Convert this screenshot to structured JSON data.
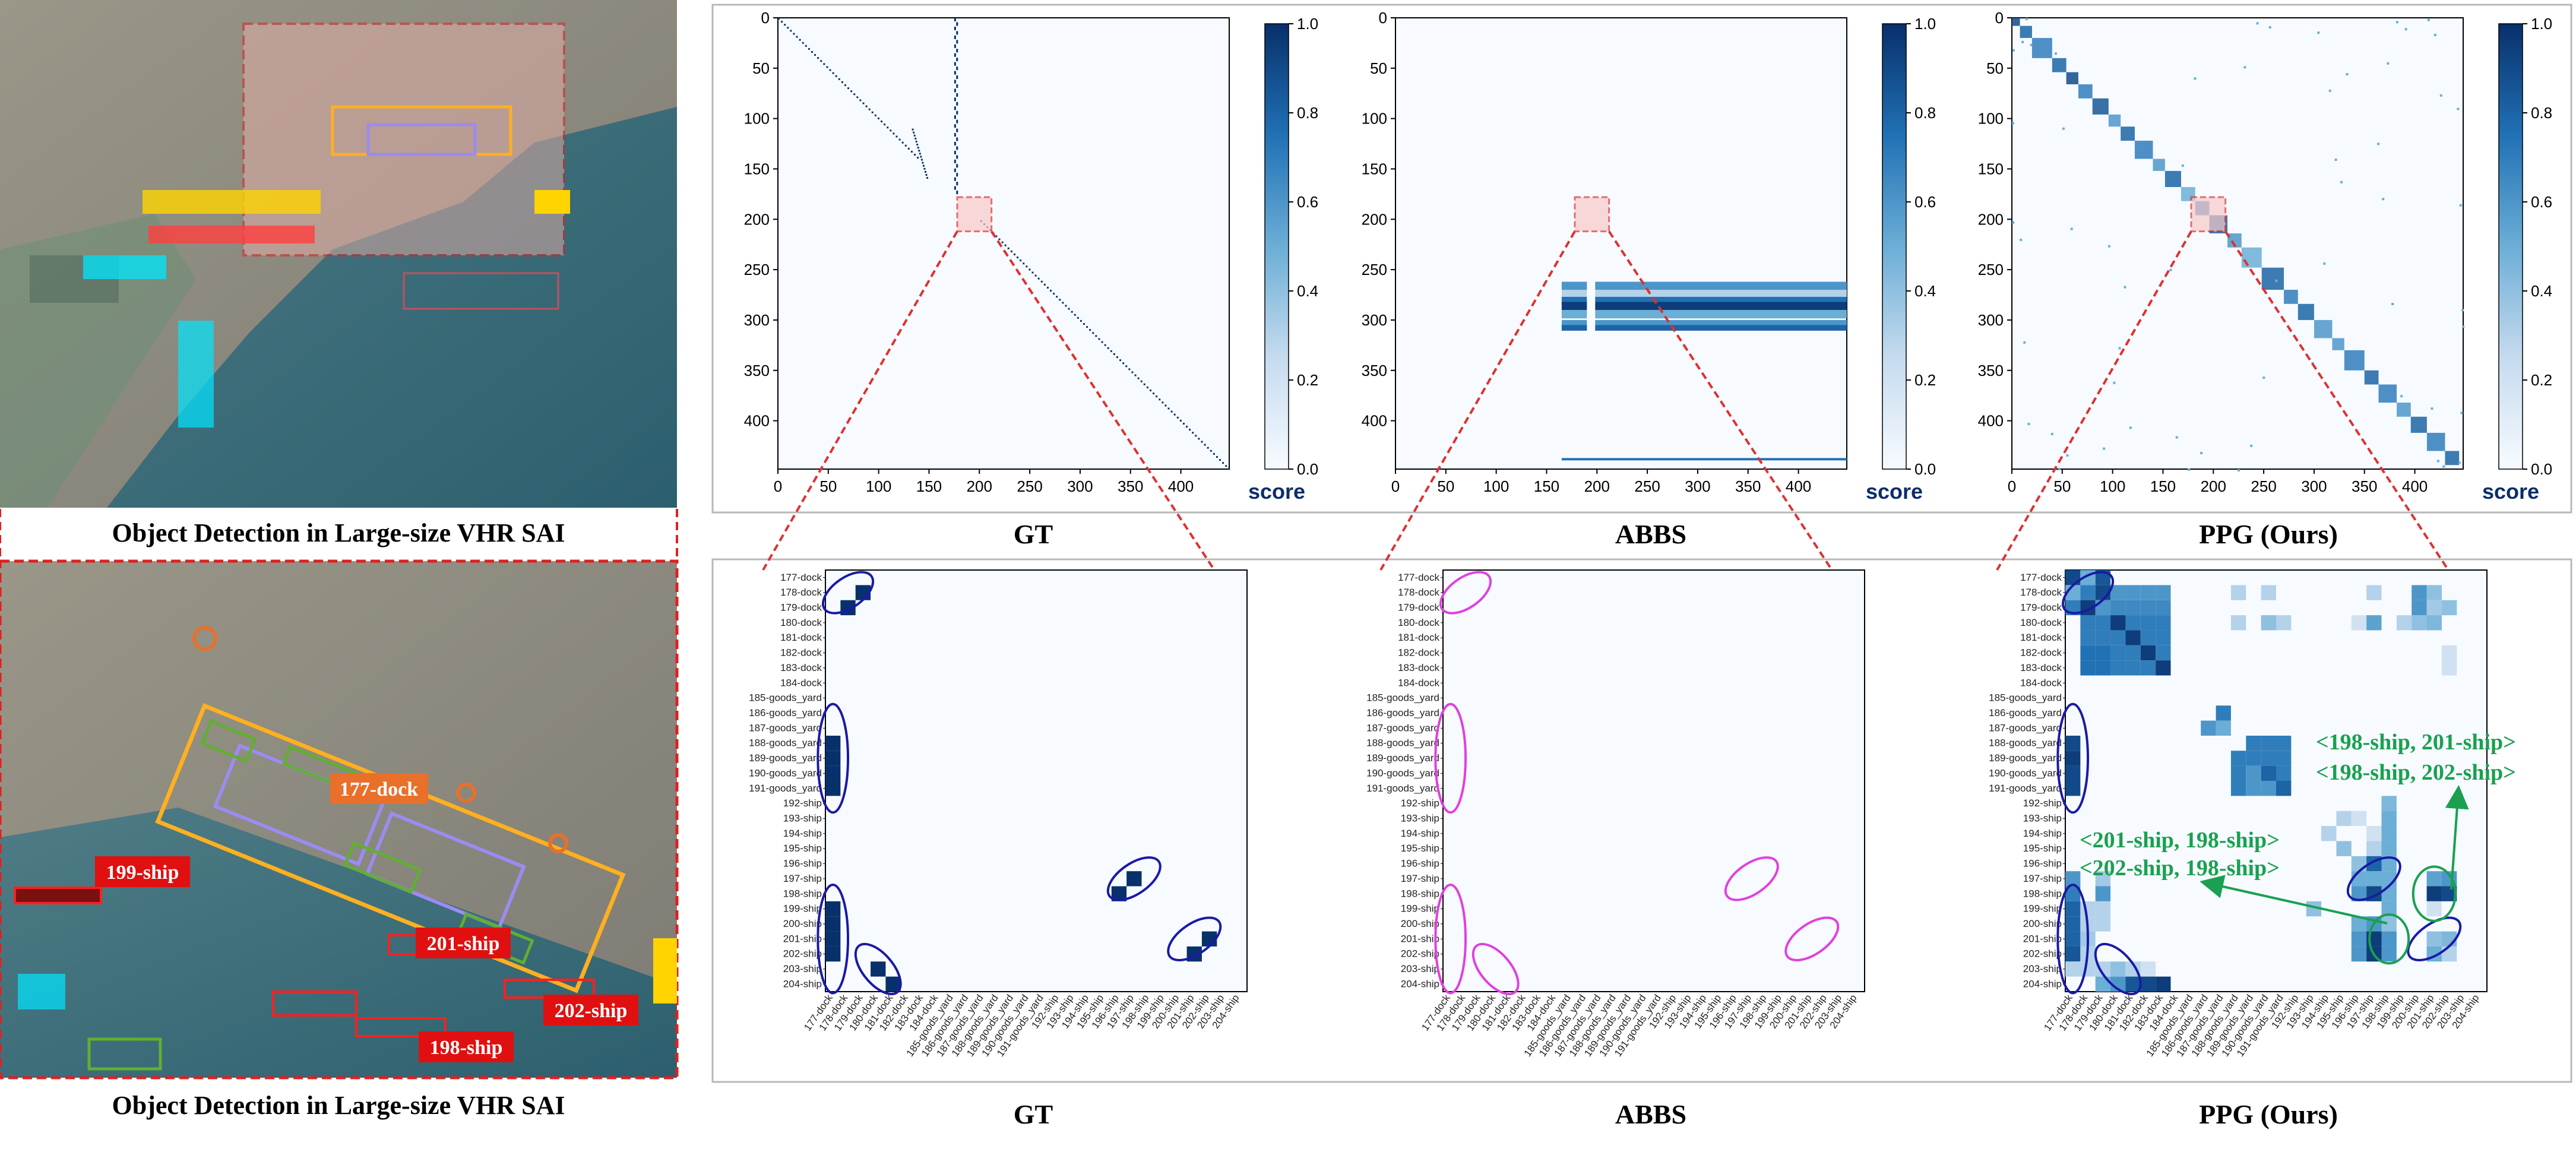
{
  "left": {
    "top_caption": "Object Detection in Large-size VHR SAI",
    "bottom_caption": "Object Detection in Large-size VHR SAI",
    "labels": [
      "177-dock",
      "199-ship",
      "201-ship",
      "202-ship",
      "198-ship"
    ]
  },
  "axis_ticks": [
    "0",
    "50",
    "100",
    "150",
    "200",
    "250",
    "300",
    "350",
    "400"
  ],
  "colorbar": {
    "ticks": [
      "0.0",
      "0.2",
      "0.4",
      "0.6",
      "0.8",
      "1.0"
    ],
    "label": "score"
  },
  "panels": [
    {
      "title": "GT"
    },
    {
      "title": "ABBS"
    },
    {
      "title": "PPG (Ours)"
    }
  ],
  "annotations": {
    "a1": "<198-ship, 201-ship>",
    "a2": "<198-ship, 202-ship>",
    "a3": "<201-ship, 198-ship>",
    "a4": "<202-ship, 198-ship>"
  },
  "colors": {
    "cmap_low": "#f7fbff",
    "cmap_high": "#08306b",
    "zoom": "#e03030",
    "gt_ellipse": "#1a1aa6",
    "abbs_ellipse": "#e040e0",
    "arrow": "#1aa050"
  },
  "chart_data": [
    {
      "type": "heatmap",
      "title": "GT",
      "xlim": [
        0,
        448
      ],
      "ylim": [
        0,
        448
      ],
      "colorbar": {
        "label": "score",
        "range": [
          0.0,
          1.0
        ]
      },
      "description_points": [
        [
          10,
          10
        ],
        [
          60,
          60
        ],
        [
          120,
          120
        ],
        [
          200,
          200
        ],
        [
          300,
          300
        ],
        [
          400,
          400
        ],
        [
          440,
          440
        ]
      ]
    },
    {
      "type": "heatmap",
      "title": "ABBS",
      "xlim": [
        0,
        448
      ],
      "ylim": [
        0,
        448
      ],
      "colorbar": {
        "label": "score",
        "range": [
          0.0,
          1.0
        ]
      }
    },
    {
      "type": "heatmap",
      "title": "PPG (Ours)",
      "xlim": [
        0,
        448
      ],
      "ylim": [
        0,
        448
      ],
      "colorbar": {
        "label": "score",
        "range": [
          0.0,
          1.0
        ]
      }
    },
    {
      "type": "heatmap",
      "title": "GT",
      "labels": [
        "177-dock",
        "178-dock",
        "179-dock",
        "180-dock",
        "181-dock",
        "182-dock",
        "183-dock",
        "184-dock",
        "185-goods_yard",
        "186-goods_yard",
        "187-goods_yard",
        "188-goods_yard",
        "189-goods_yard",
        "190-goods_yard",
        "191-goods_yard",
        "192-ship",
        "193-ship",
        "194-ship",
        "195-ship",
        "196-ship",
        "197-ship",
        "198-ship",
        "199-ship",
        "200-ship",
        "201-ship",
        "202-ship",
        "203-ship",
        "204-ship"
      ],
      "cells": [
        [
          1,
          2,
          1
        ],
        [
          2,
          1,
          1
        ],
        [
          11,
          0,
          1
        ],
        [
          12,
          0,
          1
        ],
        [
          13,
          0,
          1
        ],
        [
          14,
          0,
          1
        ],
        [
          22,
          0,
          1
        ],
        [
          23,
          0,
          1
        ],
        [
          24,
          0,
          1
        ],
        [
          25,
          0,
          1
        ],
        [
          26,
          3,
          1
        ],
        [
          27,
          4,
          1
        ],
        [
          21,
          19,
          1
        ],
        [
          20,
          20,
          1
        ],
        [
          24,
          25,
          1
        ],
        [
          25,
          24,
          1
        ]
      ]
    },
    {
      "type": "heatmap",
      "title": "ABBS",
      "labels": [
        "177-dock",
        "178-dock",
        "179-dock",
        "180-dock",
        "181-dock",
        "182-dock",
        "183-dock",
        "184-dock",
        "185-goods_yard",
        "186-goods_yard",
        "187-goods_yard",
        "188-goods_yard",
        "189-goods_yard",
        "190-goods_yard",
        "191-goods_yard",
        "192-ship",
        "193-ship",
        "194-ship",
        "195-ship",
        "196-ship",
        "197-ship",
        "198-ship",
        "199-ship",
        "200-ship",
        "201-ship",
        "202-ship",
        "203-ship",
        "204-ship"
      ],
      "cells": []
    },
    {
      "type": "heatmap",
      "title": "PPG (Ours)",
      "labels": [
        "177-dock",
        "178-dock",
        "179-dock",
        "180-dock",
        "181-dock",
        "182-dock",
        "183-dock",
        "184-dock",
        "185-goods_yard",
        "186-goods_yard",
        "187-goods_yard",
        "188-goods_yard",
        "189-goods_yard",
        "190-goods_yard",
        "191-goods_yard",
        "192-ship",
        "193-ship",
        "194-ship",
        "195-ship",
        "196-ship",
        "197-ship",
        "198-ship",
        "199-ship",
        "200-ship",
        "201-ship",
        "202-ship",
        "203-ship",
        "204-ship"
      ],
      "cells": [
        [
          0,
          0,
          0.9
        ],
        [
          0,
          1,
          0.5
        ],
        [
          0,
          2,
          0.85
        ],
        [
          1,
          0,
          0.5
        ],
        [
          1,
          1,
          0.7
        ],
        [
          1,
          2,
          0.9
        ],
        [
          1,
          3,
          0.6
        ],
        [
          1,
          4,
          0.6
        ],
        [
          1,
          5,
          0.6
        ],
        [
          1,
          6,
          0.6
        ],
        [
          1,
          11,
          0.3
        ],
        [
          1,
          13,
          0.3
        ],
        [
          1,
          20,
          0.3
        ],
        [
          1,
          23,
          0.6
        ],
        [
          1,
          24,
          0.4
        ],
        [
          2,
          0,
          0.7
        ],
        [
          2,
          1,
          0.95
        ],
        [
          2,
          2,
          0.6
        ],
        [
          2,
          3,
          0.65
        ],
        [
          2,
          4,
          0.65
        ],
        [
          2,
          5,
          0.65
        ],
        [
          2,
          6,
          0.65
        ],
        [
          2,
          23,
          0.6
        ],
        [
          2,
          24,
          0.35
        ],
        [
          2,
          25,
          0.4
        ],
        [
          3,
          1,
          0.7
        ],
        [
          3,
          2,
          0.7
        ],
        [
          3,
          3,
          0.95
        ],
        [
          3,
          4,
          0.7
        ],
        [
          3,
          5,
          0.7
        ],
        [
          3,
          6,
          0.7
        ],
        [
          3,
          11,
          0.3
        ],
        [
          3,
          13,
          0.4
        ],
        [
          3,
          14,
          0.3
        ],
        [
          3,
          19,
          0.2
        ],
        [
          3,
          20,
          0.55
        ],
        [
          3,
          22,
          0.3
        ],
        [
          3,
          23,
          0.4
        ],
        [
          3,
          24,
          0.45
        ],
        [
          4,
          1,
          0.7
        ],
        [
          4,
          2,
          0.7
        ],
        [
          4,
          3,
          0.7
        ],
        [
          4,
          4,
          0.95
        ],
        [
          4,
          5,
          0.7
        ],
        [
          4,
          6,
          0.7
        ],
        [
          5,
          1,
          0.75
        ],
        [
          5,
          2,
          0.75
        ],
        [
          5,
          3,
          0.7
        ],
        [
          5,
          4,
          0.7
        ],
        [
          5,
          5,
          0.95
        ],
        [
          5,
          6,
          0.7
        ],
        [
          5,
          25,
          0.2
        ],
        [
          6,
          1,
          0.75
        ],
        [
          6,
          2,
          0.75
        ],
        [
          6,
          3,
          0.7
        ],
        [
          6,
          4,
          0.7
        ],
        [
          6,
          5,
          0.7
        ],
        [
          6,
          6,
          0.95
        ],
        [
          6,
          25,
          0.2
        ],
        [
          9,
          10,
          0.7
        ],
        [
          10,
          9,
          0.6
        ],
        [
          10,
          10,
          0.5
        ],
        [
          11,
          0,
          0.9
        ],
        [
          11,
          12,
          0.7
        ],
        [
          11,
          13,
          0.7
        ],
        [
          11,
          14,
          0.7
        ],
        [
          12,
          0,
          0.95
        ],
        [
          12,
          11,
          0.7
        ],
        [
          12,
          12,
          0.7
        ],
        [
          12,
          13,
          0.7
        ],
        [
          12,
          14,
          0.7
        ],
        [
          13,
          0,
          0.9
        ],
        [
          13,
          11,
          0.7
        ],
        [
          13,
          12,
          0.6
        ],
        [
          13,
          13,
          0.8
        ],
        [
          13,
          14,
          0.7
        ],
        [
          14,
          0,
          0.9
        ],
        [
          14,
          11,
          0.7
        ],
        [
          14,
          12,
          0.6
        ],
        [
          14,
          13,
          0.6
        ],
        [
          14,
          14,
          0.8
        ],
        [
          15,
          21,
          0.45
        ],
        [
          16,
          18,
          0.3
        ],
        [
          16,
          19,
          0.2
        ],
        [
          16,
          21,
          0.5
        ],
        [
          17,
          17,
          0.3
        ],
        [
          17,
          20,
          0.2
        ],
        [
          17,
          21,
          0.5
        ],
        [
          18,
          18,
          0.4
        ],
        [
          18,
          20,
          0.3
        ],
        [
          18,
          21,
          0.5
        ],
        [
          19,
          19,
          0.4
        ],
        [
          19,
          20,
          0.8
        ],
        [
          19,
          21,
          0.5
        ],
        [
          20,
          0,
          0.6
        ],
        [
          20,
          2,
          0.35
        ],
        [
          20,
          19,
          0.5
        ],
        [
          20,
          20,
          0.5
        ],
        [
          20,
          21,
          0.5
        ],
        [
          20,
          24,
          0.55
        ],
        [
          20,
          25,
          0.6
        ],
        [
          21,
          0,
          0.7
        ],
        [
          21,
          2,
          0.6
        ],
        [
          21,
          19,
          0.6
        ],
        [
          21,
          20,
          0.9
        ],
        [
          21,
          21,
          0.5
        ],
        [
          21,
          24,
          0.95
        ],
        [
          21,
          25,
          0.9
        ],
        [
          22,
          0,
          0.8
        ],
        [
          22,
          1,
          0.3
        ],
        [
          22,
          2,
          0.3
        ],
        [
          22,
          16,
          0.4
        ],
        [
          22,
          21,
          0.5
        ],
        [
          22,
          24,
          0.2
        ],
        [
          23,
          0,
          0.8
        ],
        [
          23,
          1,
          0.3
        ],
        [
          23,
          2,
          0.3
        ],
        [
          23,
          19,
          0.5
        ],
        [
          23,
          20,
          0.6
        ],
        [
          23,
          21,
          0.4
        ],
        [
          24,
          0,
          0.8
        ],
        [
          24,
          1,
          0.35
        ],
        [
          24,
          19,
          0.6
        ],
        [
          24,
          20,
          0.95
        ],
        [
          24,
          21,
          0.6
        ],
        [
          24,
          24,
          0.4
        ],
        [
          24,
          25,
          0.45
        ],
        [
          25,
          0,
          0.85
        ],
        [
          25,
          1,
          0.3
        ],
        [
          25,
          19,
          0.6
        ],
        [
          25,
          20,
          0.95
        ],
        [
          25,
          21,
          0.6
        ],
        [
          25,
          24,
          0.5
        ],
        [
          25,
          25,
          0.3
        ],
        [
          26,
          0,
          0.3
        ],
        [
          26,
          1,
          0.3
        ],
        [
          26,
          2,
          0.3
        ],
        [
          26,
          3,
          0.4
        ],
        [
          26,
          4,
          0.3
        ],
        [
          26,
          5,
          0.2
        ],
        [
          27,
          2,
          0.5
        ],
        [
          27,
          3,
          0.6
        ],
        [
          27,
          4,
          0.85
        ],
        [
          27,
          5,
          0.9
        ],
        [
          27,
          6,
          0.95
        ]
      ]
    }
  ]
}
